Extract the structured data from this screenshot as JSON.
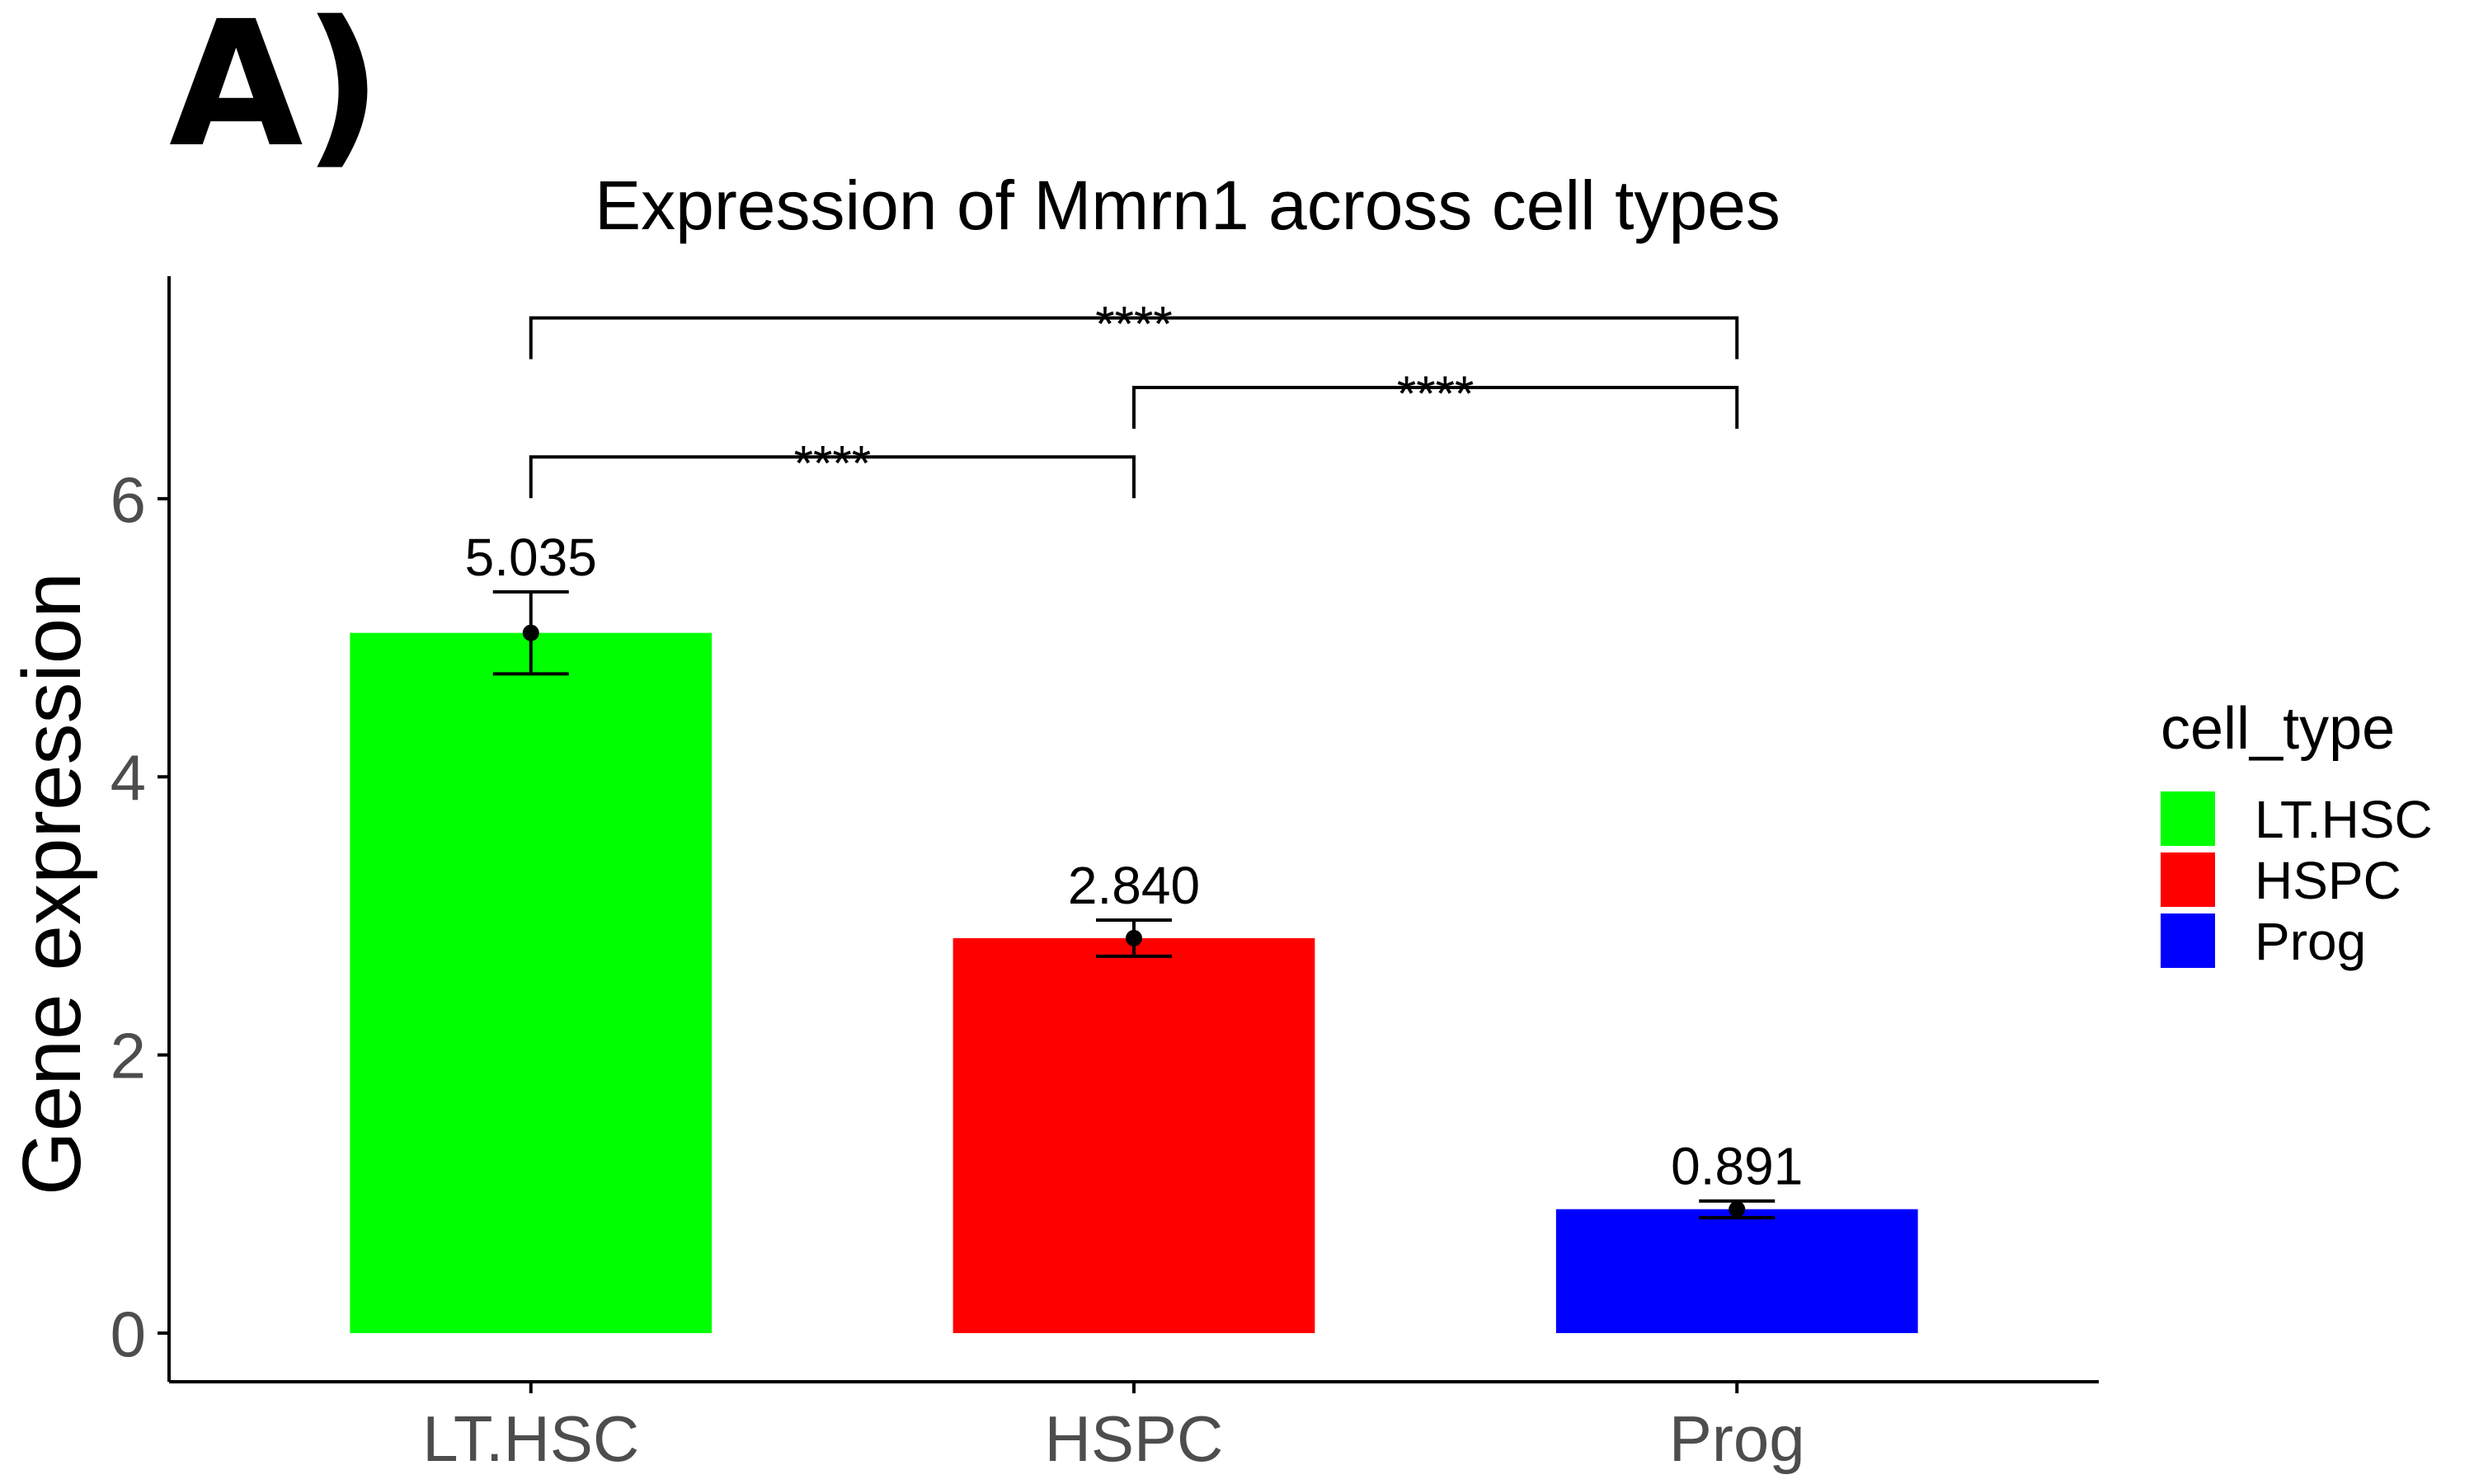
{
  "panel_label": "A)",
  "colors": {
    "LT.HSC": "#00FF00",
    "HSPC": "#FF0000",
    "Prog": "#0000FF",
    "axis": "#000000",
    "tick_label": "#4D4D4D",
    "text": "#000000"
  },
  "chart_data": {
    "type": "bar",
    "title": "Expression of Mmrn1 across cell types",
    "xlabel": "",
    "ylabel": "Gene expression",
    "categories": [
      "LT.HSC",
      "HSPC",
      "Prog"
    ],
    "values": [
      5.035,
      2.84,
      0.891
    ],
    "value_labels": [
      "5.035",
      "2.840",
      "0.891"
    ],
    "error_bars": [
      {
        "low": 4.74,
        "high": 5.33
      },
      {
        "low": 2.71,
        "high": 2.97
      },
      {
        "low": 0.83,
        "high": 0.95
      }
    ],
    "ylim": [
      -0.35,
      7.6
    ],
    "yticks": [
      0,
      2,
      4,
      6
    ],
    "ytick_labels": [
      "0",
      "2",
      "4",
      "6"
    ],
    "grid": false,
    "legend": {
      "title": "cell_type",
      "position": "right",
      "entries": [
        "LT.HSC",
        "HSPC",
        "Prog"
      ]
    },
    "significance": [
      {
        "from": "LT.HSC",
        "to": "HSPC",
        "y": 6.3,
        "label": "****"
      },
      {
        "from": "HSPC",
        "to": "Prog",
        "y": 6.8,
        "label": "****"
      },
      {
        "from": "LT.HSC",
        "to": "Prog",
        "y": 7.3,
        "label": "****"
      }
    ]
  }
}
